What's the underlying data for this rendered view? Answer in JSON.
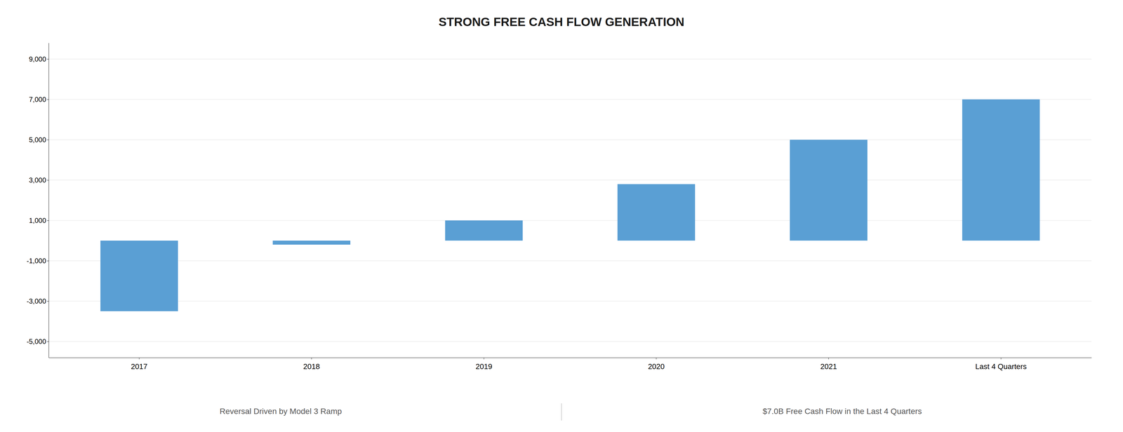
{
  "chart_data": {
    "type": "bar",
    "title": "STRONG FREE CASH FLOW GENERATION",
    "categories": [
      "2017",
      "2018",
      "2019",
      "2020",
      "2021",
      "Last 4 Quarters"
    ],
    "values": [
      -3500,
      -200,
      1000,
      2800,
      5000,
      7000
    ],
    "color": "#5a9fd4",
    "ylim": [
      -5800,
      9800
    ],
    "yticks": [
      {
        "value": -5000,
        "label": "-5,000"
      },
      {
        "value": -3000,
        "label": "-3,000"
      },
      {
        "value": -1000,
        "label": "-1,000"
      },
      {
        "value": 1000,
        "label": "1,000"
      },
      {
        "value": 3000,
        "label": "3,000"
      },
      {
        "value": 5000,
        "label": "5,000"
      },
      {
        "value": 7000,
        "label": "7,000"
      },
      {
        "value": 9000,
        "label": "9,000"
      }
    ],
    "grid": true,
    "annotations": [
      "Reversal Driven by Model 3 Ramp",
      "$7.0B Free Cash Flow in the Last 4 Quarters"
    ]
  }
}
